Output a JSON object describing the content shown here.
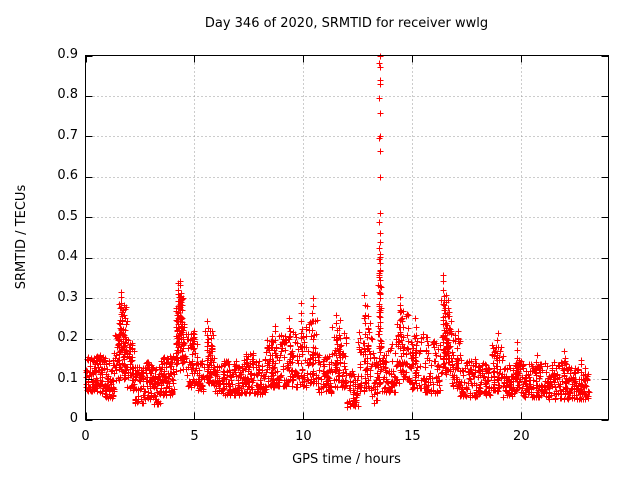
{
  "window": {
    "background": "#ffffff"
  },
  "chart_data": {
    "type": "scatter",
    "title": "Day 346 of 2020, SRMTID for receiver wwlg",
    "xlabel": "GPS time / hours",
    "ylabel": "SRMTID / TECUs",
    "xlim": [
      0,
      24
    ],
    "ylim": [
      0,
      0.9
    ],
    "x_data_range": [
      0,
      23.1
    ],
    "xticks": {
      "values": [
        0,
        5,
        10,
        15,
        20
      ],
      "labels": [
        "0",
        "5",
        "10",
        "15",
        "20"
      ]
    },
    "yticks": {
      "values": [
        0,
        0.1,
        0.2,
        0.3,
        0.4,
        0.5,
        0.6,
        0.7,
        0.8,
        0.9
      ],
      "labels": [
        "0",
        "0.1",
        "0.2",
        "0.3",
        "0.4",
        "0.5",
        "0.6",
        "0.7",
        "0.8",
        "0.9"
      ]
    },
    "grid": {
      "show": true,
      "style": "dotted",
      "color": "#999999",
      "at_xticks": [
        5,
        10,
        15,
        20
      ],
      "at_yticks": [
        0.1,
        0.2,
        0.3,
        0.4,
        0.5,
        0.6,
        0.7,
        0.8
      ]
    },
    "frame": {
      "color": "#000000",
      "mirrored_ticks": true,
      "tick_length": 7
    },
    "legend": {
      "show": false
    },
    "marker": {
      "shape": "plus",
      "color": "#ff0000",
      "size": 7
    },
    "seed": 20200346,
    "spike_points_format": "[x_hours, y_tecus] — explicit points of the 13.5 h spike event",
    "spike_points": [
      [
        13.5,
        0.898
      ],
      [
        13.49,
        0.882
      ],
      [
        13.51,
        0.872
      ],
      [
        13.5,
        0.84
      ],
      [
        13.52,
        0.83
      ],
      [
        13.49,
        0.796
      ],
      [
        13.5,
        0.757
      ],
      [
        13.51,
        0.702
      ],
      [
        13.49,
        0.697
      ],
      [
        13.5,
        0.665
      ],
      [
        13.5,
        0.599
      ],
      [
        13.51,
        0.51
      ],
      [
        13.49,
        0.489
      ],
      [
        13.5,
        0.462
      ],
      [
        13.52,
        0.44
      ],
      [
        13.49,
        0.425
      ],
      [
        13.51,
        0.41
      ],
      [
        13.5,
        0.402
      ],
      [
        13.48,
        0.396
      ],
      [
        13.52,
        0.386
      ],
      [
        13.53,
        0.37
      ],
      [
        13.47,
        0.358
      ],
      [
        13.5,
        0.344
      ],
      [
        13.52,
        0.33
      ],
      [
        13.48,
        0.315
      ],
      [
        13.51,
        0.3
      ],
      [
        13.49,
        0.286
      ],
      [
        13.53,
        0.27
      ],
      [
        13.47,
        0.256
      ],
      [
        13.5,
        0.241
      ],
      [
        13.52,
        0.226
      ],
      [
        13.48,
        0.211
      ],
      [
        13.51,
        0.196
      ],
      [
        13.49,
        0.181
      ],
      [
        13.53,
        0.166
      ],
      [
        13.47,
        0.151
      ],
      [
        13.5,
        0.136
      ],
      [
        13.52,
        0.121
      ],
      [
        13.48,
        0.106
      ],
      [
        13.51,
        0.092
      ]
    ],
    "strings_format": "vertical point runs: [x_center, y_min, y_max, n_points]",
    "strings": [
      [
        1.62,
        0.17,
        0.315,
        12
      ],
      [
        1.7,
        0.14,
        0.27,
        10
      ],
      [
        1.55,
        0.13,
        0.24,
        8
      ],
      [
        1.78,
        0.12,
        0.22,
        8
      ],
      [
        4.25,
        0.15,
        0.335,
        14
      ],
      [
        4.35,
        0.17,
        0.345,
        13
      ],
      [
        4.45,
        0.14,
        0.3,
        11
      ],
      [
        4.18,
        0.12,
        0.26,
        9
      ],
      [
        5.6,
        0.1,
        0.245,
        9
      ],
      [
        5.72,
        0.1,
        0.22,
        8
      ],
      [
        8.55,
        0.1,
        0.21,
        8
      ],
      [
        8.7,
        0.1,
        0.235,
        8
      ],
      [
        9.35,
        0.1,
        0.25,
        8
      ],
      [
        9.9,
        0.1,
        0.285,
        10
      ],
      [
        10.42,
        0.12,
        0.3,
        10
      ],
      [
        11.5,
        0.1,
        0.26,
        9
      ],
      [
        11.65,
        0.1,
        0.245,
        8
      ],
      [
        12.8,
        0.1,
        0.305,
        10
      ],
      [
        12.92,
        0.1,
        0.28,
        8
      ],
      [
        14.45,
        0.12,
        0.305,
        11
      ],
      [
        14.55,
        0.1,
        0.27,
        9
      ],
      [
        15.15,
        0.1,
        0.25,
        8
      ],
      [
        16.42,
        0.14,
        0.355,
        14
      ],
      [
        16.52,
        0.13,
        0.31,
        11
      ],
      [
        16.62,
        0.12,
        0.295,
        10
      ],
      [
        17.05,
        0.08,
        0.22,
        7
      ],
      [
        18.9,
        0.1,
        0.215,
        8
      ],
      [
        19.8,
        0.08,
        0.19,
        7
      ],
      [
        20.7,
        0.08,
        0.16,
        6
      ],
      [
        21.98,
        0.08,
        0.17,
        7
      ],
      [
        22.75,
        0.07,
        0.15,
        6
      ]
    ],
    "bands_format": "dense scatter envelope: [x_start, x_end, n_points, y_min, y_max, skew_toward_min]",
    "bands": [
      [
        0.0,
        0.45,
        55,
        0.07,
        0.155,
        1.2
      ],
      [
        0.45,
        0.9,
        55,
        0.065,
        0.16,
        1.2
      ],
      [
        0.9,
        1.3,
        45,
        0.05,
        0.15,
        1.2
      ],
      [
        1.3,
        1.55,
        28,
        0.09,
        0.22,
        1.1
      ],
      [
        1.55,
        1.9,
        38,
        0.1,
        0.29,
        1.0
      ],
      [
        1.9,
        2.25,
        40,
        0.07,
        0.2,
        1.2
      ],
      [
        2.25,
        2.7,
        50,
        0.04,
        0.14,
        1.2
      ],
      [
        2.7,
        3.1,
        45,
        0.05,
        0.145,
        1.2
      ],
      [
        3.1,
        3.45,
        40,
        0.035,
        0.13,
        1.2
      ],
      [
        3.45,
        4.1,
        75,
        0.06,
        0.16,
        1.2
      ],
      [
        4.1,
        4.55,
        55,
        0.12,
        0.31,
        0.9
      ],
      [
        4.55,
        5.15,
        60,
        0.08,
        0.22,
        1.4
      ],
      [
        5.15,
        5.45,
        30,
        0.07,
        0.15,
        1.2
      ],
      [
        5.45,
        5.9,
        42,
        0.09,
        0.22,
        1.3
      ],
      [
        5.9,
        6.35,
        45,
        0.065,
        0.14,
        1.2
      ],
      [
        6.35,
        7.25,
        85,
        0.06,
        0.145,
        1.2
      ],
      [
        7.25,
        7.8,
        55,
        0.065,
        0.165,
        1.2
      ],
      [
        7.8,
        8.3,
        48,
        0.06,
        0.15,
        1.2
      ],
      [
        8.3,
        9.05,
        70,
        0.08,
        0.21,
        1.3
      ],
      [
        9.05,
        9.65,
        55,
        0.08,
        0.22,
        1.4
      ],
      [
        9.65,
        10.15,
        45,
        0.08,
        0.24,
        1.5
      ],
      [
        10.15,
        10.65,
        42,
        0.09,
        0.25,
        1.5
      ],
      [
        10.65,
        11.3,
        58,
        0.065,
        0.16,
        1.2
      ],
      [
        11.3,
        11.95,
        60,
        0.08,
        0.23,
        1.4
      ],
      [
        11.95,
        12.5,
        48,
        0.03,
        0.12,
        1.1
      ],
      [
        12.5,
        13.15,
        58,
        0.07,
        0.26,
        1.5
      ],
      [
        13.15,
        13.42,
        26,
        0.04,
        0.18,
        1.2
      ],
      [
        13.42,
        13.6,
        30,
        0.08,
        0.38,
        1.0
      ],
      [
        13.6,
        14.25,
        55,
        0.065,
        0.19,
        1.4
      ],
      [
        14.25,
        14.9,
        58,
        0.09,
        0.27,
        1.4
      ],
      [
        14.9,
        15.5,
        55,
        0.075,
        0.22,
        1.5
      ],
      [
        15.5,
        16.3,
        70,
        0.065,
        0.21,
        1.6
      ],
      [
        16.3,
        16.8,
        52,
        0.11,
        0.3,
        1.1
      ],
      [
        16.8,
        17.2,
        38,
        0.08,
        0.22,
        1.5
      ],
      [
        17.2,
        17.95,
        65,
        0.055,
        0.15,
        1.2
      ],
      [
        17.95,
        18.65,
        60,
        0.06,
        0.14,
        1.2
      ],
      [
        18.65,
        19.15,
        45,
        0.07,
        0.19,
        1.4
      ],
      [
        19.15,
        19.7,
        48,
        0.055,
        0.135,
        1.2
      ],
      [
        19.7,
        20.0,
        28,
        0.07,
        0.17,
        1.4
      ],
      [
        20.0,
        21.1,
        100,
        0.055,
        0.14,
        1.3
      ],
      [
        21.1,
        22.1,
        92,
        0.05,
        0.145,
        1.3
      ],
      [
        22.1,
        23.1,
        88,
        0.05,
        0.13,
        1.3
      ]
    ]
  }
}
